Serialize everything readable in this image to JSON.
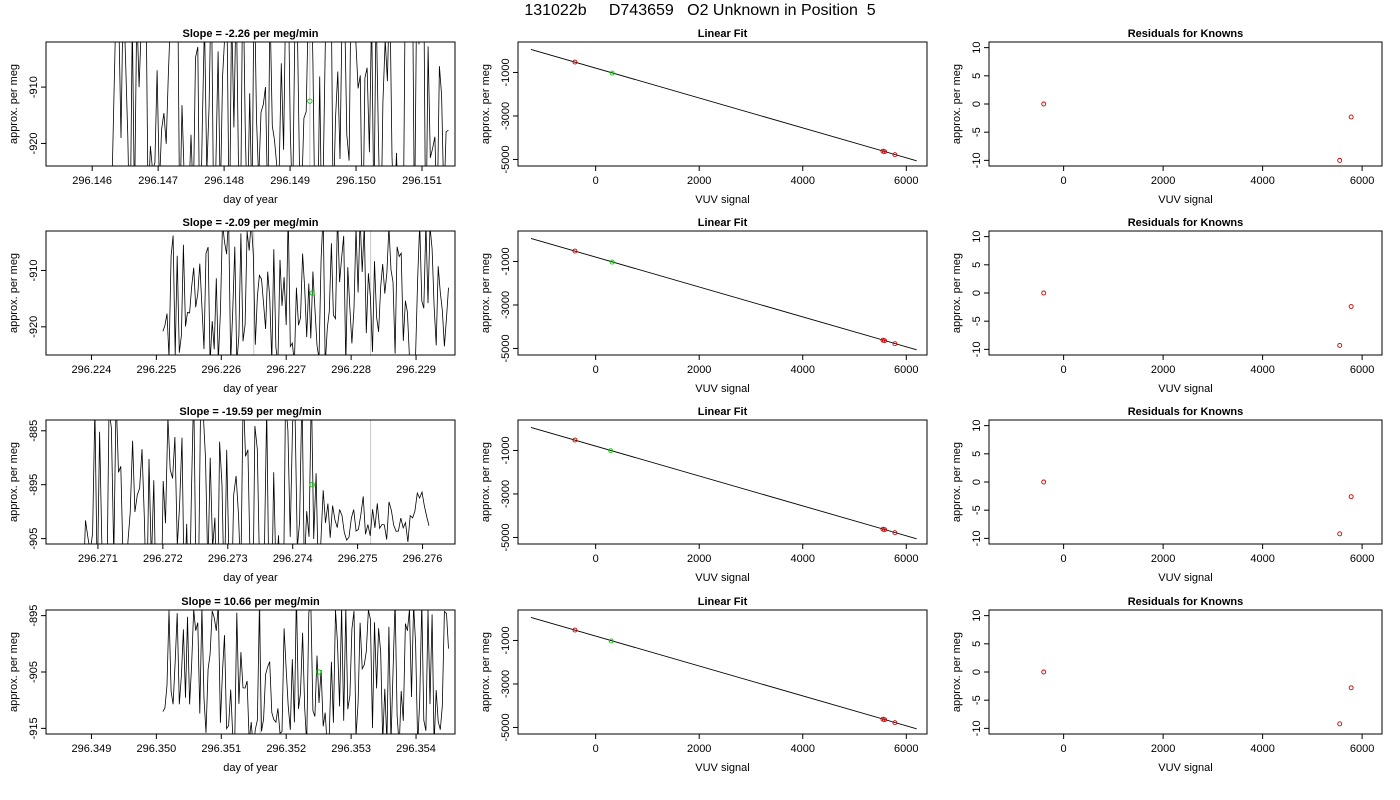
{
  "page": {
    "title": "131022b     D743659   O2 Unknown in Position  5"
  },
  "colors": {
    "trace": "#000000",
    "unknown_point": "#00cc00",
    "known_point": "#cc0000",
    "vertical_marker": "#c8c8c8"
  },
  "chart_data": [
    {
      "type": "line",
      "title": "Slope =  -2.26  per meg/min",
      "xlabel": "day of year",
      "ylabel": "approx. per meg",
      "xlim": [
        296.1453,
        296.1515
      ],
      "ylim": [
        -924,
        -902
      ],
      "xticks": [
        296.146,
        296.147,
        296.148,
        296.149,
        296.15,
        296.151
      ],
      "xtick_labels": [
        "296.146",
        "296.147",
        "296.148",
        "296.149",
        "296.150",
        "296.151"
      ],
      "yticks": [
        -920,
        -910
      ],
      "ytick_labels": [
        "-920",
        "-910"
      ],
      "vlines": [
        296.1493
      ],
      "trace": {
        "x_start": 296.1463,
        "x_end": 296.1514,
        "n": 150,
        "center": -912.5,
        "amp": 28,
        "seed": 3
      },
      "mean_point": {
        "x": 296.1493,
        "y": -912.5
      }
    },
    {
      "type": "scatter",
      "title": "Linear Fit",
      "xlabel": "VUV signal",
      "ylabel": "approx. per meg",
      "xlim": [
        -1500,
        6400
      ],
      "ylim": [
        -5300,
        400
      ],
      "xticks": [
        0,
        2000,
        4000,
        6000
      ],
      "xtick_labels": [
        "0",
        "2000",
        "4000",
        "6000"
      ],
      "yticks": [
        -5000,
        -3000,
        -1000
      ],
      "ytick_labels": [
        "-5000",
        "-3000",
        "-1000"
      ],
      "fit_line": {
        "x": [
          -1250,
          6200
        ],
        "y": [
          60,
          -5060
        ]
      },
      "knowns": {
        "x": [
          -400,
          5550,
          5580,
          5780
        ],
        "y": [
          -520,
          -4620,
          -4640,
          -4780
        ]
      },
      "unknown": {
        "x": 320,
        "y": -1030
      }
    },
    {
      "type": "scatter",
      "title": "Residuals for Knowns",
      "xlabel": "VUV signal",
      "ylabel": "approx. per meg",
      "xlim": [
        -1500,
        6400
      ],
      "ylim": [
        -11,
        11
      ],
      "xticks": [
        0,
        2000,
        4000,
        6000
      ],
      "xtick_labels": [
        "0",
        "2000",
        "4000",
        "6000"
      ],
      "yticks": [
        -10,
        -5,
        0,
        5,
        10
      ],
      "ytick_labels": [
        "-10",
        "-5",
        "0",
        "5",
        "10"
      ],
      "knowns": {
        "x": [
          -400,
          5550,
          5780
        ],
        "y": [
          0,
          -10,
          -2.3
        ]
      }
    },
    {
      "type": "line",
      "title": "Slope =  -2.09  per meg/min",
      "xlabel": "day of year",
      "ylabel": "approx. per meg",
      "xlim": [
        296.2233,
        296.2296
      ],
      "ylim": [
        -925,
        -903
      ],
      "xticks": [
        296.224,
        296.225,
        296.226,
        296.227,
        296.228,
        296.229
      ],
      "xtick_labels": [
        "296.224",
        "296.225",
        "296.226",
        "296.227",
        "296.228",
        "296.229"
      ],
      "yticks": [
        -920,
        -910
      ],
      "ytick_labels": [
        "-920",
        "-910"
      ],
      "vlines": [
        296.2265,
        296.2283
      ],
      "trace": {
        "x_start": 296.2251,
        "x_end": 296.2295,
        "n": 140,
        "center": -913.5,
        "amp": 14,
        "seed": 11
      },
      "mean_point": {
        "x": 296.2274,
        "y": -914
      }
    },
    {
      "type": "scatter",
      "title": "Linear Fit",
      "xlabel": "VUV signal",
      "ylabel": "approx. per meg",
      "xlim": [
        -1500,
        6400
      ],
      "ylim": [
        -5300,
        400
      ],
      "xticks": [
        0,
        2000,
        4000,
        6000
      ],
      "xtick_labels": [
        "0",
        "2000",
        "4000",
        "6000"
      ],
      "yticks": [
        -5000,
        -3000,
        -1000
      ],
      "ytick_labels": [
        "-5000",
        "-3000",
        "-1000"
      ],
      "fit_line": {
        "x": [
          -1250,
          6200
        ],
        "y": [
          60,
          -5060
        ]
      },
      "knowns": {
        "x": [
          -400,
          5550,
          5580,
          5780
        ],
        "y": [
          -520,
          -4620,
          -4640,
          -4780
        ]
      },
      "unknown": {
        "x": 320,
        "y": -1030
      }
    },
    {
      "type": "scatter",
      "title": "Residuals for Knowns",
      "xlabel": "VUV signal",
      "ylabel": "approx. per meg",
      "xlim": [
        -1500,
        6400
      ],
      "ylim": [
        -11,
        11
      ],
      "xticks": [
        0,
        2000,
        4000,
        6000
      ],
      "xtick_labels": [
        "0",
        "2000",
        "4000",
        "6000"
      ],
      "yticks": [
        -10,
        -5,
        0,
        5,
        10
      ],
      "ytick_labels": [
        "-10",
        "-5",
        "0",
        "5",
        "10"
      ],
      "knowns": {
        "x": [
          -400,
          5550,
          5780
        ],
        "y": [
          0,
          -9.3,
          -2.4
        ]
      }
    },
    {
      "type": "line",
      "title": "Slope =  -19.59  per meg/min",
      "xlabel": "day of year",
      "ylabel": "approx. per meg",
      "xlim": [
        296.2702,
        296.2765
      ],
      "ylim": [
        -906,
        -883
      ],
      "xticks": [
        296.271,
        296.272,
        296.273,
        296.274,
        296.275,
        296.276
      ],
      "xtick_labels": [
        "296.271",
        "296.272",
        "296.273",
        "296.274",
        "296.275",
        "296.276"
      ],
      "yticks": [
        -905,
        -895,
        -885
      ],
      "ytick_labels": [
        "-905",
        "-895",
        "-885"
      ],
      "vlines": [
        296.2752
      ],
      "trace": {
        "x_start": 296.2707,
        "x_end": 296.2761,
        "n": 150,
        "center": -899,
        "amp": 24,
        "seed": 21,
        "tail_from": 296.2744,
        "tail_center": -901,
        "tail_amp": 5
      },
      "mean_point": {
        "x": 296.2743,
        "y": -895
      }
    },
    {
      "type": "scatter",
      "title": "Linear Fit",
      "xlabel": "VUV signal",
      "ylabel": "approx. per meg",
      "xlim": [
        -1500,
        6400
      ],
      "ylim": [
        -5300,
        400
      ],
      "xticks": [
        0,
        2000,
        4000,
        6000
      ],
      "xtick_labels": [
        "0",
        "2000",
        "4000",
        "6000"
      ],
      "yticks": [
        -5000,
        -3000,
        -1000
      ],
      "ytick_labels": [
        "-5000",
        "-3000",
        "-1000"
      ],
      "fit_line": {
        "x": [
          -1250,
          6200
        ],
        "y": [
          60,
          -5060
        ]
      },
      "knowns": {
        "x": [
          -400,
          5550,
          5580,
          5780
        ],
        "y": [
          -520,
          -4620,
          -4640,
          -4780
        ]
      },
      "unknown": {
        "x": 290,
        "y": -1010
      }
    },
    {
      "type": "scatter",
      "title": "Residuals for Knowns",
      "xlabel": "VUV signal",
      "ylabel": "approx. per meg",
      "xlim": [
        -1500,
        6400
      ],
      "ylim": [
        -11,
        11
      ],
      "xticks": [
        0,
        2000,
        4000,
        6000
      ],
      "xtick_labels": [
        "0",
        "2000",
        "4000",
        "6000"
      ],
      "yticks": [
        -10,
        -5,
        0,
        5,
        10
      ],
      "ytick_labels": [
        "-10",
        "-5",
        "0",
        "5",
        "10"
      ],
      "knowns": {
        "x": [
          -400,
          5550,
          5780
        ],
        "y": [
          0,
          -9.2,
          -2.6
        ]
      }
    },
    {
      "type": "line",
      "title": "Slope =  10.66  per meg/min",
      "xlabel": "day of year",
      "ylabel": "approx. per meg",
      "xlim": [
        296.3483,
        296.3546
      ],
      "ylim": [
        -916,
        -894
      ],
      "xticks": [
        296.349,
        296.35,
        296.351,
        296.352,
        296.353,
        296.354
      ],
      "xtick_labels": [
        "296.349",
        "296.350",
        "296.351",
        "296.352",
        "296.353",
        "296.354"
      ],
      "yticks": [
        -915,
        -905,
        -895
      ],
      "ytick_labels": [
        "-915",
        "-905",
        "-895"
      ],
      "vlines": [
        296.3516
      ],
      "trace": {
        "x_start": 296.3501,
        "x_end": 296.3545,
        "n": 140,
        "center": -905,
        "amp": 14,
        "seed": 33
      },
      "mean_point": {
        "x": 296.3525,
        "y": -905
      }
    },
    {
      "type": "scatter",
      "title": "Linear Fit",
      "xlabel": "VUV signal",
      "ylabel": "approx. per meg",
      "xlim": [
        -1500,
        6400
      ],
      "ylim": [
        -5300,
        400
      ],
      "xticks": [
        0,
        2000,
        4000,
        6000
      ],
      "xtick_labels": [
        "0",
        "2000",
        "4000",
        "6000"
      ],
      "yticks": [
        -5000,
        -3000,
        -1000
      ],
      "ytick_labels": [
        "-5000",
        "-3000",
        "-1000"
      ],
      "fit_line": {
        "x": [
          -1250,
          6200
        ],
        "y": [
          60,
          -5060
        ]
      },
      "knowns": {
        "x": [
          -400,
          5550,
          5580,
          5780
        ],
        "y": [
          -520,
          -4620,
          -4640,
          -4780
        ]
      },
      "unknown": {
        "x": 300,
        "y": -1020
      }
    },
    {
      "type": "scatter",
      "title": "Residuals for Knowns",
      "xlabel": "VUV signal",
      "ylabel": "approx. per meg",
      "xlim": [
        -1500,
        6400
      ],
      "ylim": [
        -11,
        11
      ],
      "xticks": [
        0,
        2000,
        4000,
        6000
      ],
      "xtick_labels": [
        "0",
        "2000",
        "4000",
        "6000"
      ],
      "yticks": [
        -10,
        -5,
        0,
        5,
        10
      ],
      "ytick_labels": [
        "-10",
        "-5",
        "0",
        "5",
        "10"
      ],
      "knowns": {
        "x": [
          -400,
          5550,
          5780
        ],
        "y": [
          0,
          -9.2,
          -2.8
        ]
      }
    }
  ]
}
